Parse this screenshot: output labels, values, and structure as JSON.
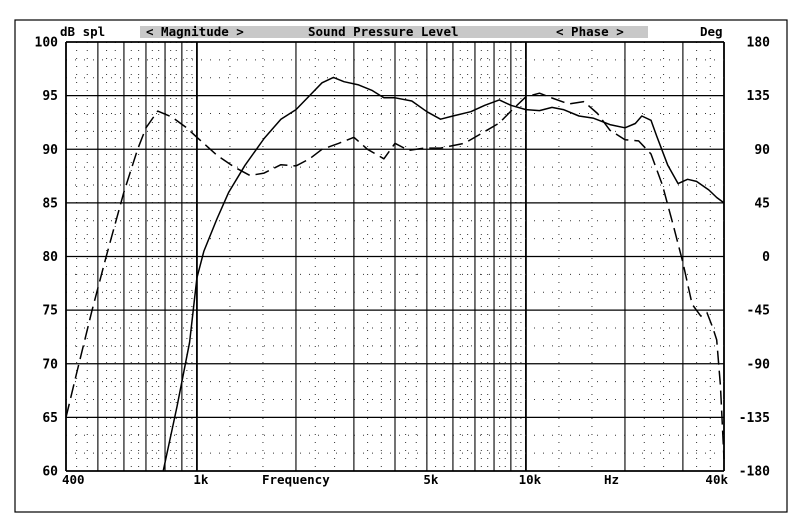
{
  "chart_data": {
    "type": "line",
    "header": {
      "left_unit": "dB spl",
      "magnitude_label": "< Magnitude >",
      "title": "Sound Pressure Level",
      "phase_label": "< Phase >",
      "right_unit": "Deg"
    },
    "x_axis": {
      "scale": "log",
      "range": [
        400,
        40000
      ],
      "tick_labels": [
        {
          "value": 400,
          "label": "400"
        },
        {
          "value": 1000,
          "label": "1k"
        },
        {
          "value": 5000,
          "label": "5k"
        },
        {
          "value": 10000,
          "label": "10k"
        },
        {
          "value": 40000,
          "label": "40k"
        }
      ],
      "label": "Frequency",
      "unit_label": "Hz"
    },
    "y_left": {
      "range": [
        60,
        100
      ],
      "ticks": [
        "60",
        "65",
        "70",
        "75",
        "80",
        "85",
        "90",
        "95",
        "100"
      ]
    },
    "y_right": {
      "range": [
        -180,
        180
      ],
      "ticks": [
        "-180",
        "-135",
        "-90",
        "-45",
        "0",
        "45",
        "90",
        "135",
        "180"
      ]
    },
    "grid": true,
    "series": [
      {
        "axis": "left",
        "style": "solid",
        "points": [
          [
            790,
            60
          ],
          [
            870,
            66
          ],
          [
            950,
            72
          ],
          [
            1000,
            78
          ],
          [
            1050,
            80.5
          ],
          [
            1150,
            83.5
          ],
          [
            1250,
            86
          ],
          [
            1400,
            88.5
          ],
          [
            1600,
            91
          ],
          [
            1800,
            92.8
          ],
          [
            2000,
            93.7
          ],
          [
            2200,
            95
          ],
          [
            2400,
            96.2
          ],
          [
            2600,
            96.7
          ],
          [
            2800,
            96.3
          ],
          [
            3100,
            96
          ],
          [
            3400,
            95.5
          ],
          [
            3700,
            94.8
          ],
          [
            4000,
            94.8
          ],
          [
            4500,
            94.5
          ],
          [
            5000,
            93.5
          ],
          [
            5500,
            92.8
          ],
          [
            6000,
            93.1
          ],
          [
            6800,
            93.5
          ],
          [
            7500,
            94.1
          ],
          [
            8300,
            94.6
          ],
          [
            9000,
            94.1
          ],
          [
            10000,
            93.7
          ],
          [
            11000,
            93.6
          ],
          [
            12000,
            93.9
          ],
          [
            13000,
            93.7
          ],
          [
            14500,
            93.1
          ],
          [
            16000,
            92.9
          ],
          [
            18000,
            92.3
          ],
          [
            20000,
            92
          ],
          [
            21500,
            92.4
          ],
          [
            22500,
            93.1
          ],
          [
            24000,
            92.7
          ],
          [
            25000,
            91.2
          ],
          [
            27000,
            88.5
          ],
          [
            29000,
            86.8
          ],
          [
            31000,
            87.2
          ],
          [
            33000,
            87
          ],
          [
            36000,
            86.2
          ],
          [
            38000,
            85.5
          ],
          [
            40000,
            85
          ]
        ]
      },
      {
        "axis": "right",
        "style": "dashed",
        "points": [
          [
            400,
            -135
          ],
          [
            430,
            -99
          ],
          [
            480,
            -45
          ],
          [
            530,
            0
          ],
          [
            600,
            54
          ],
          [
            660,
            90
          ],
          [
            700,
            108
          ],
          [
            760,
            122
          ],
          [
            840,
            117
          ],
          [
            930,
            108
          ],
          [
            1000,
            100
          ],
          [
            1150,
            85
          ],
          [
            1300,
            75
          ],
          [
            1450,
            68
          ],
          [
            1600,
            70
          ],
          [
            1800,
            77
          ],
          [
            2000,
            76
          ],
          [
            2200,
            82
          ],
          [
            2400,
            90
          ],
          [
            2700,
            95
          ],
          [
            3000,
            100
          ],
          [
            3300,
            90
          ],
          [
            3700,
            82
          ],
          [
            4000,
            95
          ],
          [
            4400,
            89
          ],
          [
            4900,
            91
          ],
          [
            5500,
            91
          ],
          [
            6500,
            95
          ],
          [
            7400,
            104
          ],
          [
            8300,
            112
          ],
          [
            9000,
            122
          ],
          [
            10000,
            134
          ],
          [
            11000,
            137
          ],
          [
            12000,
            133
          ],
          [
            13500,
            128
          ],
          [
            15000,
            130
          ],
          [
            16500,
            120
          ],
          [
            18000,
            106
          ],
          [
            20000,
            98
          ],
          [
            22000,
            97
          ],
          [
            24000,
            86
          ],
          [
            26000,
            60
          ],
          [
            28000,
            27
          ],
          [
            30000,
            -5
          ],
          [
            32000,
            -40
          ],
          [
            34000,
            -50
          ],
          [
            35500,
            -47
          ],
          [
            37000,
            -60
          ],
          [
            38000,
            -70
          ],
          [
            39000,
            -108
          ],
          [
            40000,
            -170
          ]
        ]
      }
    ]
  }
}
